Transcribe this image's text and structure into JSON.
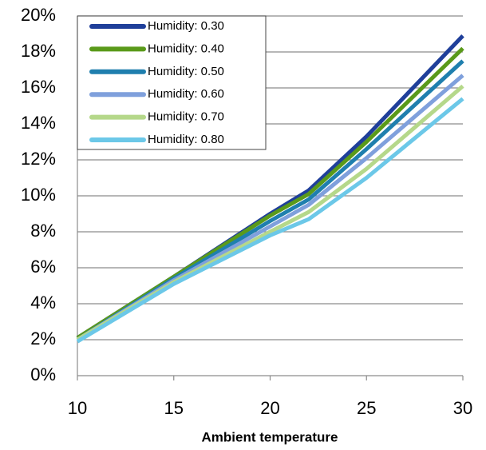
{
  "chart_data": {
    "type": "line",
    "x_label": "Ambient temperature",
    "x": [
      10,
      15,
      20,
      22,
      25,
      30
    ],
    "xlim": [
      10,
      30
    ],
    "xticks": [
      10,
      15,
      20,
      25,
      30
    ],
    "ylim": [
      0,
      20
    ],
    "yticks": [
      {
        "value": 0,
        "label": "0%"
      },
      {
        "value": 2,
        "label": "2%"
      },
      {
        "value": 4,
        "label": "4%"
      },
      {
        "value": 6,
        "label": "6%"
      },
      {
        "value": 8,
        "label": "8%"
      },
      {
        "value": 10,
        "label": "10%"
      },
      {
        "value": 12,
        "label": "12%"
      },
      {
        "value": 14,
        "label": "14%"
      },
      {
        "value": 16,
        "label": "16%"
      },
      {
        "value": 18,
        "label": "18%"
      },
      {
        "value": 20,
        "label": "20%"
      }
    ],
    "grid": true,
    "legend": "top-left",
    "series": [
      {
        "name": "Humidity: 0.30",
        "color": "#1f3f9a",
        "values": [
          2.1,
          5.5,
          9.0,
          10.3,
          13.3,
          18.9
        ]
      },
      {
        "name": "Humidity: 0.40",
        "color": "#5a9a1a",
        "values": [
          2.1,
          5.5,
          8.9,
          10.1,
          13.0,
          18.2
        ]
      },
      {
        "name": "Humidity: 0.50",
        "color": "#1f7fae",
        "values": [
          2.0,
          5.4,
          8.6,
          9.8,
          12.6,
          17.5
        ]
      },
      {
        "name": "Humidity: 0.60",
        "color": "#7fa0dc",
        "values": [
          2.0,
          5.3,
          8.3,
          9.5,
          12.1,
          16.7
        ]
      },
      {
        "name": "Humidity: 0.70",
        "color": "#b5d88a",
        "values": [
          2.0,
          5.2,
          8.0,
          9.1,
          11.5,
          16.1
        ]
      },
      {
        "name": "Humidity: 0.80",
        "color": "#6cc8e8",
        "values": [
          1.9,
          5.1,
          7.8,
          8.7,
          11.0,
          15.4
        ]
      }
    ]
  }
}
